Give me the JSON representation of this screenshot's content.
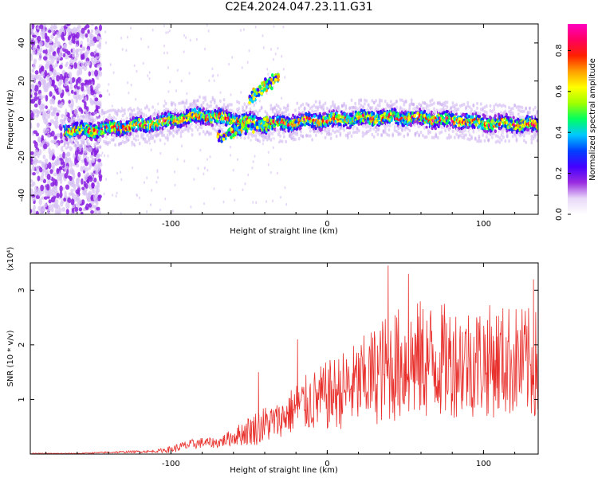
{
  "title": "C2E4.2024.047.23.11.G31",
  "chart_data": [
    {
      "type": "heatmap",
      "xlabel": "Height of straight line (km)",
      "ylabel": "Frequency (Hz)",
      "xlim": [
        -190,
        135
      ],
      "ylim": [
        -50,
        50
      ],
      "xticks": [
        -100,
        0,
        100
      ],
      "xtick_labels": [
        "-100",
        "0",
        "100"
      ],
      "yticks": [
        -40,
        -20,
        0,
        20,
        40
      ],
      "ytick_labels": [
        "-40",
        "-20",
        "0",
        "20",
        "40"
      ],
      "colorbar": {
        "label": "Normalized spectral amplitude",
        "range": [
          0,
          0.93
        ],
        "ticks": [
          0.0,
          0.2,
          0.4,
          0.6,
          0.8
        ],
        "tick_labels": [
          "0.0",
          "0.2",
          "0.4",
          "0.6",
          "0.8"
        ],
        "colormap": [
          "#ffffff",
          "#e8d8f8",
          "#9a2ce0",
          "#4400ff",
          "#0040ff",
          "#00c8ff",
          "#00ff60",
          "#a0ff00",
          "#ffff00",
          "#ffa000",
          "#ff2000",
          "#ff0060",
          "#ff00c0"
        ]
      },
      "ridge": {
        "x": [
          -165,
          -150,
          -130,
          -110,
          -95,
          -80,
          -60,
          -40,
          -25,
          -10,
          10,
          40,
          70,
          100,
          130
        ],
        "y": [
          -6,
          -6,
          -4,
          -2,
          0,
          2,
          0,
          -3,
          -2,
          -1,
          0,
          1,
          0,
          -2,
          -3
        ]
      },
      "branches": [
        {
          "x": [
            -50,
            -42,
            -35,
            -31
          ],
          "y": [
            10,
            16,
            20,
            22
          ]
        },
        {
          "x": [
            -70,
            -58,
            -46,
            -38
          ],
          "y": [
            -10,
            -6,
            -3,
            0
          ]
        }
      ]
    },
    {
      "type": "line",
      "xlabel": "Height of straight line (km)",
      "ylabel": "SNR (10 * v/v)",
      "y_multiplier": "(x10⁴)",
      "xlim": [
        -190,
        135
      ],
      "ylim": [
        0,
        3.5
      ],
      "xticks": [
        -100,
        0,
        100
      ],
      "xtick_labels": [
        "-100",
        "0",
        "100"
      ],
      "yticks": [
        1,
        2,
        3
      ],
      "ytick_labels": [
        "1",
        "2",
        "3"
      ],
      "color": "#e8302c",
      "envelope": {
        "x": [
          -190,
          -160,
          -140,
          -110,
          -100,
          -90,
          -80,
          -70,
          -60,
          -50,
          -40,
          -30,
          -20,
          -10,
          0,
          20,
          40,
          60,
          80,
          100,
          120,
          135
        ],
        "base": [
          0.01,
          0.01,
          0.03,
          0.05,
          0.08,
          0.15,
          0.2,
          0.2,
          0.3,
          0.4,
          0.5,
          0.6,
          0.8,
          0.9,
          1.0,
          1.2,
          1.5,
          1.6,
          1.6,
          1.6,
          1.6,
          1.5
        ],
        "amplitude": [
          0.01,
          0.01,
          0.02,
          0.03,
          0.08,
          0.12,
          0.12,
          0.12,
          0.2,
          0.35,
          0.45,
          0.4,
          0.6,
          0.7,
          0.8,
          1.0,
          1.3,
          1.4,
          1.3,
          1.3,
          1.3,
          1.3
        ]
      },
      "peaks": [
        {
          "x": 39,
          "y": 3.45
        },
        {
          "x": 52,
          "y": 3.3
        },
        {
          "x": 132,
          "y": 3.2
        },
        {
          "x": -44,
          "y": 1.5
        },
        {
          "x": -19,
          "y": 2.1
        }
      ]
    }
  ]
}
